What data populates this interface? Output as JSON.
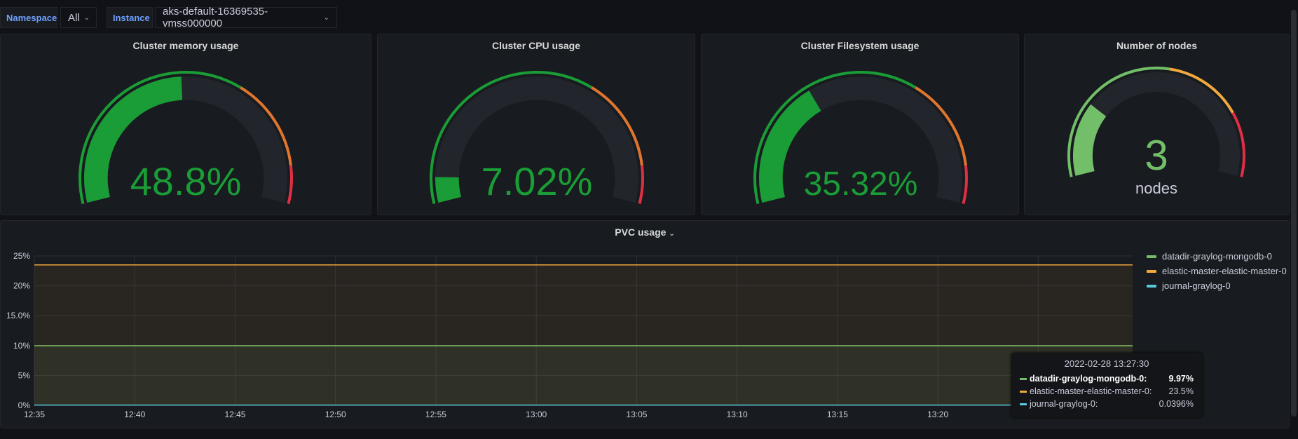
{
  "variables": {
    "namespace_label": "Namespace",
    "namespace_value": "All",
    "instance_label": "Instance",
    "instance_value": "aks-default-16369535-vmss000000"
  },
  "gauges": [
    {
      "title": "Cluster memory usage",
      "value": 48.8,
      "display": "48.8%",
      "min": 0,
      "max": 100,
      "thresholds": [
        65,
        90
      ],
      "colors": [
        "#1a9c36",
        "#e0752d",
        "#e02f44"
      ]
    },
    {
      "title": "Cluster CPU usage",
      "value": 7.02,
      "display": "7.02%",
      "min": 0,
      "max": 100,
      "thresholds": [
        65,
        90
      ],
      "colors": [
        "#1a9c36",
        "#e0752d",
        "#e02f44"
      ]
    },
    {
      "title": "Cluster Filesystem usage",
      "value": 35.32,
      "display": "35.32%",
      "min": 0,
      "max": 100,
      "thresholds": [
        65,
        90
      ],
      "colors": [
        "#1a9c36",
        "#e0752d",
        "#e02f44"
      ]
    },
    {
      "title": "Number of nodes",
      "value": 3,
      "display": "3",
      "unit": "nodes",
      "min": 0,
      "max": 12,
      "thresholds": [
        6.5,
        9.5
      ],
      "colors": [
        "#73bf69",
        "#f2a93b",
        "#e02f44"
      ]
    }
  ],
  "chart_data": {
    "type": "area",
    "title": "PVC usage",
    "x": [
      "12:35",
      "12:40",
      "12:45",
      "12:50",
      "12:55",
      "13:00",
      "13:05",
      "13:10",
      "13:15",
      "13:20",
      "13:25"
    ],
    "x_range_minutes": [
      0,
      54.7
    ],
    "yticks": [
      "0%",
      "5%",
      "10%",
      "15.0%",
      "20%",
      "25%"
    ],
    "ylim": [
      0,
      25
    ],
    "series": [
      {
        "name": "datadir-graylog-mongodb-0",
        "value": 9.97,
        "display": "9.97%",
        "color": "#73bf69"
      },
      {
        "name": "elastic-master-elastic-master-0",
        "value": 23.5,
        "display": "23.5%",
        "color": "#f2a93b"
      },
      {
        "name": "journal-graylog-0",
        "value": 0.0396,
        "display": "0.0396%",
        "color": "#5ac8e0"
      }
    ],
    "legend": "right",
    "tooltip": {
      "time": "2022-02-28 13:27:30"
    }
  }
}
